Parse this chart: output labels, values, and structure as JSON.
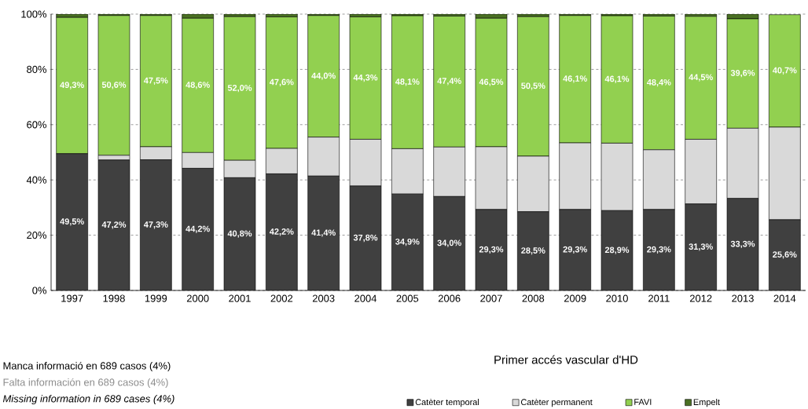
{
  "chart_data": {
    "type": "bar",
    "stacked": true,
    "title": "Primer accés vascular d'HD",
    "categories": [
      "1997",
      "1998",
      "1999",
      "2000",
      "2001",
      "2002",
      "2003",
      "2004",
      "2005",
      "2006",
      "2007",
      "2008",
      "2009",
      "2010",
      "2011",
      "2012",
      "2013",
      "2014"
    ],
    "series": [
      {
        "name": "Catèter temporal",
        "color": "#404040",
        "values": [
          49.5,
          47.2,
          47.3,
          44.2,
          40.8,
          42.2,
          41.4,
          37.8,
          34.9,
          34.0,
          29.3,
          28.5,
          29.3,
          28.9,
          29.3,
          31.3,
          33.3,
          25.6
        ],
        "value_labels": [
          "49,5%",
          "47,2%",
          "47,3%",
          "44,2%",
          "40,8%",
          "42,2%",
          "41,4%",
          "37,8%",
          "34,9%",
          "34,0%",
          "29,3%",
          "28,5%",
          "29,3%",
          "28,9%",
          "29,3%",
          "31,3%",
          "33,3%",
          "25,6%"
        ]
      },
      {
        "name": "Catèter permanent",
        "color": "#d9d9d9",
        "values": [
          0,
          1.7,
          4.7,
          5.7,
          6.3,
          9.2,
          14.1,
          16.9,
          16.4,
          17.9,
          22.7,
          20.1,
          24.1,
          24.4,
          21.6,
          23.4,
          25.4,
          33.5
        ]
      },
      {
        "name": "FAVI",
        "color": "#92d050",
        "values": [
          49.3,
          50.6,
          47.5,
          48.6,
          52.0,
          47.6,
          44.0,
          44.3,
          48.1,
          47.4,
          46.5,
          50.5,
          46.1,
          46.1,
          48.4,
          44.5,
          39.6,
          40.7
        ],
        "value_labels": [
          "49,3%",
          "50,6%",
          "47,5%",
          "48,6%",
          "52,0%",
          "47,6%",
          "44,0%",
          "44,3%",
          "48,1%",
          "47,4%",
          "46,5%",
          "50,5%",
          "46,1%",
          "46,1%",
          "48,4%",
          "44,5%",
          "39,6%",
          "40,7%"
        ]
      },
      {
        "name": "Empelt",
        "color": "#4a7023",
        "values": [
          1.2,
          0.5,
          0.5,
          1.5,
          0.9,
          1.0,
          0.5,
          1.0,
          0.6,
          0.7,
          1.5,
          0.9,
          0.5,
          0.6,
          0.7,
          0.8,
          1.7,
          null
        ]
      }
    ],
    "ylim": [
      0,
      100
    ],
    "yticks": [
      {
        "value": 0,
        "label": "0%"
      },
      {
        "value": 20,
        "label": "20%"
      },
      {
        "value": 40,
        "label": "40%"
      },
      {
        "value": 60,
        "label": "60%"
      },
      {
        "value": 80,
        "label": "80%"
      },
      {
        "value": 100,
        "label": "100%"
      }
    ],
    "grid": "y",
    "legend": "bottom",
    "annotations": [
      "Manca informació en 689 casos (4%)",
      "Falta información en 689 casos (4%)",
      "Missing information in 689 cases (4%)"
    ]
  }
}
